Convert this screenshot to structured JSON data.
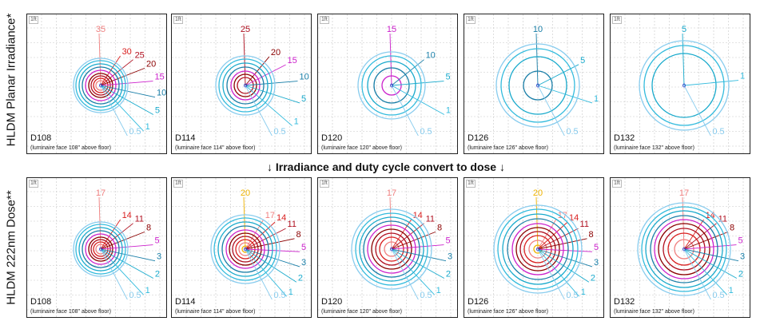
{
  "rows": [
    {
      "label": "HLDM Planar Irradiance*",
      "panels": [
        {
          "code": "D108",
          "note": "(luminaire face 108\" above floor)",
          "contours": [
            {
              "v": "35",
              "r": 6,
              "color": "#f08080"
            },
            {
              "v": "30",
              "r": 9,
              "color": "#d92020"
            },
            {
              "v": "25",
              "r": 12,
              "color": "#b01020"
            },
            {
              "v": "20",
              "r": 15,
              "color": "#8b0000"
            },
            {
              "v": "15",
              "r": 19,
              "color": "#cc22cc"
            },
            {
              "v": "10",
              "r": 23,
              "color": "#1a7fa8"
            },
            {
              "v": "5",
              "r": 27,
              "color": "#19aacc"
            },
            {
              "v": "1",
              "r": 31,
              "color": "#33bbdd"
            },
            {
              "v": "0.5",
              "r": 34,
              "color": "#88ccee"
            }
          ]
        },
        {
          "code": "D114",
          "note": "(luminaire face 114\" above floor)",
          "contours": [
            {
              "v": "25",
              "r": 10,
              "color": "#b01020"
            },
            {
              "v": "20",
              "r": 14,
              "color": "#8b0000"
            },
            {
              "v": "15",
              "r": 18,
              "color": "#cc22cc"
            },
            {
              "v": "10",
              "r": 23,
              "color": "#1a7fa8"
            },
            {
              "v": "5",
              "r": 28,
              "color": "#19aacc"
            },
            {
              "v": "1",
              "r": 33,
              "color": "#33bbdd"
            },
            {
              "v": "0.5",
              "r": 37,
              "color": "#88ccee"
            }
          ]
        },
        {
          "code": "D120",
          "note": "(luminaire face 120\" above floor)",
          "contours": [
            {
              "v": "15",
              "r": 12,
              "color": "#cc22cc"
            },
            {
              "v": "10",
              "r": 22,
              "color": "#1a7fa8"
            },
            {
              "v": "5",
              "r": 30,
              "color": "#19aacc"
            },
            {
              "v": "1",
              "r": 37,
              "color": "#33bbdd"
            },
            {
              "v": "0.5",
              "r": 42,
              "color": "#88ccee"
            }
          ]
        },
        {
          "code": "D126",
          "note": "(luminaire face 126\" above floor)",
          "contours": [
            {
              "v": "10",
              "r": 18,
              "color": "#1a7fa8"
            },
            {
              "v": "5",
              "r": 36,
              "color": "#19aacc"
            },
            {
              "v": "1",
              "r": 46,
              "color": "#33bbdd"
            },
            {
              "v": "0.5",
              "r": 52,
              "color": "#88ccee"
            }
          ]
        },
        {
          "code": "D132",
          "note": "(luminaire face 132\" above floor)",
          "contours": [
            {
              "v": "5",
              "r": 40,
              "color": "#19aacc"
            },
            {
              "v": "1",
              "r": 50,
              "color": "#33bbdd"
            },
            {
              "v": "0.5",
              "r": 56,
              "color": "#88ccee"
            }
          ]
        }
      ]
    },
    {
      "label": "HLDM 222nm Dose**",
      "panels": [
        {
          "code": "D108",
          "note": "(luminaire face 108\" above floor)",
          "contours": [
            {
              "v": "17",
              "r": 6,
              "color": "#f08080"
            },
            {
              "v": "14",
              "r": 9,
              "color": "#d92020"
            },
            {
              "v": "11",
              "r": 12,
              "color": "#b01020"
            },
            {
              "v": "8",
              "r": 15,
              "color": "#8b0000"
            },
            {
              "v": "5",
              "r": 19,
              "color": "#cc22cc"
            },
            {
              "v": "3",
              "r": 23,
              "color": "#1a7fa8"
            },
            {
              "v": "2",
              "r": 27,
              "color": "#19aacc"
            },
            {
              "v": "1",
              "r": 31,
              "color": "#33bbdd"
            },
            {
              "v": "0.5",
              "r": 34,
              "color": "#88ccee"
            }
          ]
        },
        {
          "code": "D114",
          "note": "(luminaire face 114\" above floor)",
          "contours": [
            {
              "v": "20",
              "r": 4,
              "color": "#f0b400"
            },
            {
              "v": "17",
              "r": 8,
              "color": "#f08080"
            },
            {
              "v": "14",
              "r": 12,
              "color": "#d92020"
            },
            {
              "v": "11",
              "r": 16,
              "color": "#b01020"
            },
            {
              "v": "8",
              "r": 20,
              "color": "#8b0000"
            },
            {
              "v": "5",
              "r": 24,
              "color": "#cc22cc"
            },
            {
              "v": "3",
              "r": 29,
              "color": "#1a7fa8"
            },
            {
              "v": "2",
              "r": 34,
              "color": "#19aacc"
            },
            {
              "v": "1",
              "r": 39,
              "color": "#33bbdd"
            },
            {
              "v": "0.5",
              "r": 43,
              "color": "#88ccee"
            }
          ]
        },
        {
          "code": "D120",
          "note": "(luminaire face 120\" above floor)",
          "contours": [
            {
              "v": "17",
              "r": 9,
              "color": "#f08080"
            },
            {
              "v": "14",
              "r": 15,
              "color": "#d92020"
            },
            {
              "v": "11",
              "r": 20,
              "color": "#b01020"
            },
            {
              "v": "8",
              "r": 25,
              "color": "#8b0000"
            },
            {
              "v": "5",
              "r": 30,
              "color": "#cc22cc"
            },
            {
              "v": "3",
              "r": 35,
              "color": "#1a7fa8"
            },
            {
              "v": "2",
              "r": 40,
              "color": "#19aacc"
            },
            {
              "v": "1",
              "r": 45,
              "color": "#33bbdd"
            },
            {
              "v": "0.5",
              "r": 50,
              "color": "#88ccee"
            }
          ]
        },
        {
          "code": "D126",
          "note": "(luminaire face 126\" above floor)",
          "contours": [
            {
              "v": "20",
              "r": 5,
              "color": "#f0b400"
            },
            {
              "v": "17",
              "r": 11,
              "color": "#f08080"
            },
            {
              "v": "14",
              "r": 17,
              "color": "#d92020"
            },
            {
              "v": "11",
              "r": 22,
              "color": "#b01020"
            },
            {
              "v": "8",
              "r": 27,
              "color": "#8b0000"
            },
            {
              "v": "5",
              "r": 32,
              "color": "#cc22cc"
            },
            {
              "v": "3",
              "r": 38,
              "color": "#1a7fa8"
            },
            {
              "v": "2",
              "r": 44,
              "color": "#19aacc"
            },
            {
              "v": "1",
              "r": 50,
              "color": "#33bbdd"
            },
            {
              "v": "0.5",
              "r": 55,
              "color": "#88ccee"
            }
          ]
        },
        {
          "code": "D132",
          "note": "(luminaire face 132\" above floor)",
          "contours": [
            {
              "v": "17",
              "r": 12,
              "color": "#f08080"
            },
            {
              "v": "14",
              "r": 20,
              "color": "#d92020"
            },
            {
              "v": "11",
              "r": 26,
              "color": "#b01020"
            },
            {
              "v": "8",
              "r": 32,
              "color": "#8b0000"
            },
            {
              "v": "5",
              "r": 37,
              "color": "#cc22cc"
            },
            {
              "v": "3",
              "r": 42,
              "color": "#1a7fa8"
            },
            {
              "v": "2",
              "r": 48,
              "color": "#19aacc"
            },
            {
              "v": "1",
              "r": 53,
              "color": "#33bbdd"
            },
            {
              "v": "0.5",
              "r": 58,
              "color": "#88ccee"
            }
          ]
        }
      ]
    }
  ],
  "convert_text": "↓ Irradiance and duty cycle convert to dose ↓",
  "scale_tag": "1ft"
}
